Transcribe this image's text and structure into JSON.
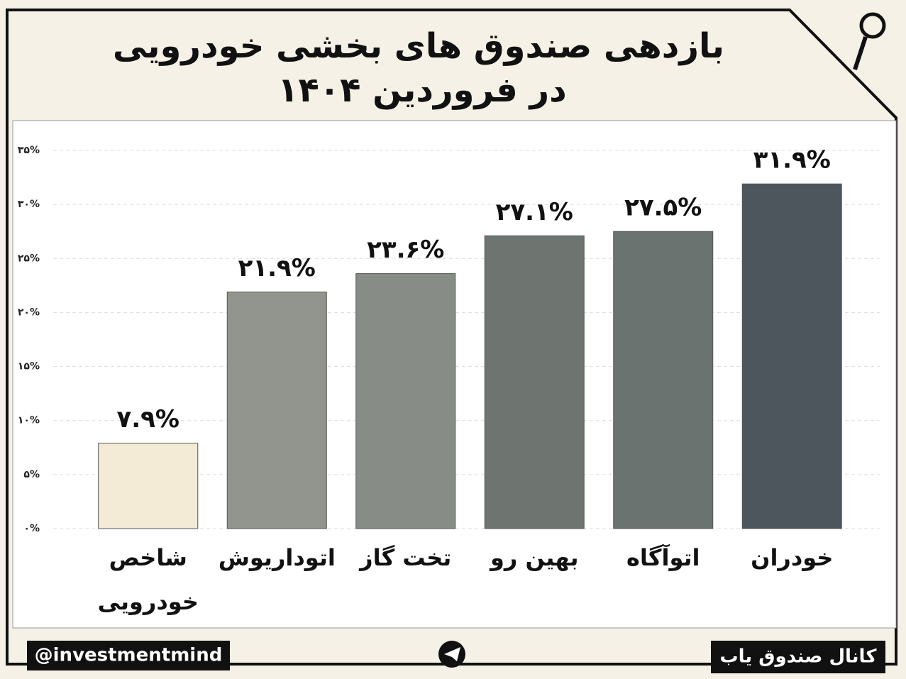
{
  "chart_data": {
    "type": "bar",
    "title": "بازدهی صندوق های بخشی خودرویی",
    "subtitle": "در فروردین ۱۴۰۴",
    "categories": [
      "شاخص خودرویی",
      "اتوداریوش",
      "تخت گاز",
      "بهین رو",
      "اتوآگاه",
      "خودران"
    ],
    "values": [
      7.9,
      21.9,
      23.6,
      27.1,
      27.5,
      31.9
    ],
    "value_labels": [
      "۷.۹%",
      "۲۱.۹%",
      "۲۳.۶%",
      "۲۷.۱%",
      "۲۷.۵%",
      "۳۱.۹%"
    ],
    "colors": [
      "#f3ebd6",
      "#91958d",
      "#878c86",
      "#6e7571",
      "#6b7370",
      "#4c565c"
    ],
    "ylim": [
      0,
      35
    ],
    "yticks": [
      {
        "value": 0,
        "label": "۰%"
      },
      {
        "value": 5,
        "label": "۵%"
      },
      {
        "value": 10,
        "label": "۱۰%"
      },
      {
        "value": 15,
        "label": "۱۵%"
      },
      {
        "value": 20,
        "label": "۲۰%"
      },
      {
        "value": 25,
        "label": "۲۵%"
      },
      {
        "value": 30,
        "label": "۳۰%"
      },
      {
        "value": 35,
        "label": "۳۵%"
      }
    ],
    "grid": true,
    "footer_left": "@investmentmind",
    "footer_right": "کانال صندوق یاب"
  }
}
